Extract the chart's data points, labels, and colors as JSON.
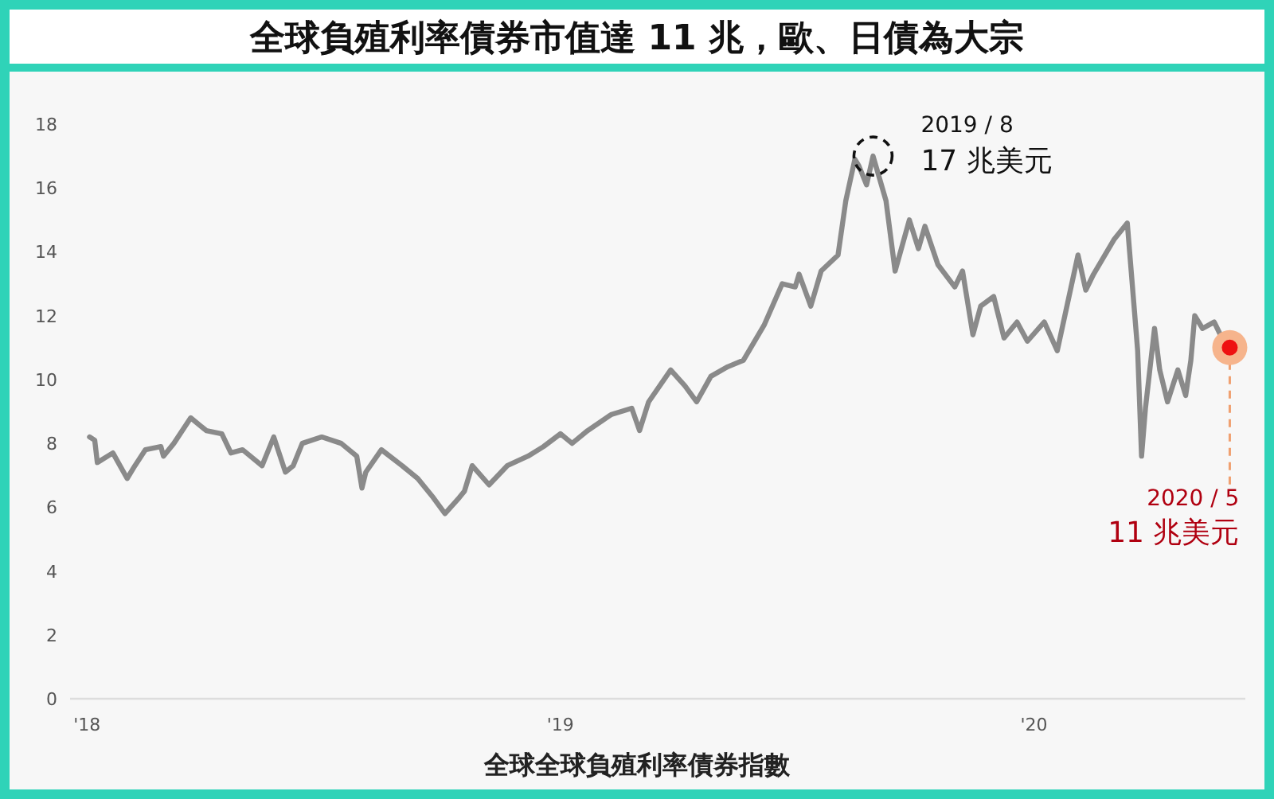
{
  "chart_data": {
    "type": "line",
    "title": "全球負殖利率債券市值達 11 兆，歐、日債為大宗",
    "xlabel": "全球全球負殖利率債券指數",
    "xlim": [
      "2017-12-19",
      "2020-06-12"
    ],
    "xticks": [
      {
        "value": "2018-01-01",
        "label": "'18"
      },
      {
        "value": "2019-01-01",
        "label": "'19"
      },
      {
        "value": "2020-01-01",
        "label": "'20"
      }
    ],
    "ylim": [
      0,
      18
    ],
    "yticks": [
      0,
      2,
      4,
      6,
      8,
      10,
      12,
      14,
      16,
      18
    ],
    "series": [
      {
        "color": "#8a8a8a",
        "x": [
          "2018-01-03",
          "2018-01-07",
          "2018-01-09",
          "2018-01-21",
          "2018-02-01",
          "2018-02-07",
          "2018-02-15",
          "2018-02-27",
          "2018-03-01",
          "2018-03-09",
          "2018-03-22",
          "2018-04-03",
          "2018-04-15",
          "2018-04-22",
          "2018-05-01",
          "2018-05-16",
          "2018-05-25",
          "2018-06-03",
          "2018-06-09",
          "2018-06-16",
          "2018-07-01",
          "2018-07-16",
          "2018-07-28",
          "2018-08-01",
          "2018-08-04",
          "2018-08-16",
          "2018-09-01",
          "2018-09-13",
          "2018-09-25",
          "2018-10-04",
          "2018-10-15",
          "2018-10-19",
          "2018-10-25",
          "2018-11-07",
          "2018-11-21",
          "2018-12-07",
          "2018-12-19",
          "2019-01-01",
          "2019-01-10",
          "2019-01-22",
          "2019-02-09",
          "2019-02-25",
          "2019-03-03",
          "2019-03-10",
          "2019-03-27",
          "2019-04-07",
          "2019-04-16",
          "2019-04-27",
          "2019-05-10",
          "2019-05-22",
          "2019-06-07",
          "2019-06-21",
          "2019-07-01",
          "2019-07-04",
          "2019-07-13",
          "2019-07-21",
          "2019-08-03",
          "2019-08-09",
          "2019-08-16",
          "2019-08-19",
          "2019-08-25",
          "2019-08-30",
          "2019-09-09",
          "2019-09-16",
          "2019-09-27",
          "2019-10-04",
          "2019-10-09",
          "2019-10-19",
          "2019-11-01",
          "2019-11-07",
          "2019-11-15",
          "2019-11-21",
          "2019-12-01",
          "2019-12-09",
          "2019-12-19",
          "2019-12-27",
          "2020-01-09",
          "2020-01-19",
          "2020-02-04",
          "2020-02-10",
          "2020-02-16",
          "2020-03-03",
          "2020-03-13",
          "2020-03-16",
          "2020-03-21",
          "2020-03-24",
          "2020-03-27",
          "2020-04-03",
          "2020-04-07",
          "2020-04-13",
          "2020-04-21",
          "2020-04-27",
          "2020-05-01",
          "2020-05-04",
          "2020-05-10",
          "2020-05-19",
          "2020-05-25",
          "2020-05-31"
        ],
        "values": [
          8.2,
          8.1,
          7.4,
          7.7,
          6.9,
          7.3,
          7.8,
          7.9,
          7.6,
          8.0,
          8.8,
          8.4,
          8.3,
          7.7,
          7.8,
          7.3,
          8.2,
          7.1,
          7.3,
          8.0,
          8.2,
          8.0,
          7.6,
          6.6,
          7.1,
          7.8,
          7.3,
          6.9,
          6.3,
          5.8,
          6.3,
          6.5,
          7.3,
          6.7,
          7.3,
          7.6,
          7.9,
          8.3,
          8.0,
          8.4,
          8.9,
          9.1,
          8.4,
          9.3,
          10.3,
          9.8,
          9.3,
          10.1,
          10.4,
          10.6,
          11.7,
          13.0,
          12.9,
          13.3,
          12.3,
          13.4,
          13.9,
          15.6,
          16.9,
          16.7,
          16.1,
          17.0,
          15.6,
          13.4,
          15.0,
          14.1,
          14.8,
          13.6,
          12.9,
          13.4,
          11.4,
          12.3,
          12.6,
          11.3,
          11.8,
          11.2,
          11.8,
          10.9,
          13.9,
          12.8,
          13.3,
          14.4,
          14.9,
          13.4,
          10.9,
          7.6,
          9.1,
          11.6,
          10.3,
          9.3,
          10.3,
          9.5,
          10.6,
          12.0,
          11.6,
          11.8,
          11.3,
          11.0
        ]
      }
    ],
    "annotations": [
      {
        "text": "2019 / 8",
        "x": "2019-08-30",
        "y": 17
      },
      "17 兆美元",
      {
        "text": "2020 / 5",
        "x": "2020-05-31",
        "y": 11
      },
      {
        "text": "11 兆美元",
        "x": "2020-05-31",
        "y": 11
      }
    ]
  }
}
